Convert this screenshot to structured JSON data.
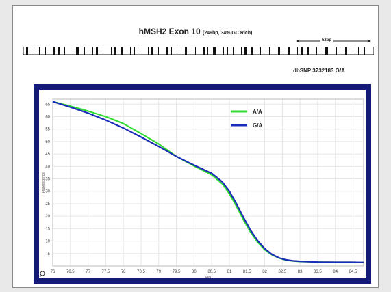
{
  "title": {
    "main": "hMSH2 Exon 10",
    "detail": "(249bp, 34% GC Rich)"
  },
  "annotation": {
    "span_label": "52bp",
    "snp_label": "dbSNP 3732183 G/A"
  },
  "colors": {
    "frame": "#141a78",
    "aa_series": "#33dd33",
    "ga_series": "#1a2cb8",
    "grid": "#e6e6e6"
  },
  "chart_data": {
    "type": "line",
    "xlabel": "deg",
    "ylabel": "Fluorescence",
    "xlim": [
      76,
      84.8
    ],
    "ylim": [
      0,
      67
    ],
    "xticks": [
      76,
      76.5,
      77,
      77.5,
      78,
      78.5,
      79,
      79.5,
      80,
      80.5,
      81,
      81.5,
      82,
      82.5,
      83,
      83.5,
      84,
      84.5
    ],
    "xtick_labels": [
      "76",
      "76.5",
      "77",
      "77.5",
      "78",
      "78.5",
      "79",
      "79.5",
      "80",
      "80.5",
      "81",
      "81.5",
      "82",
      "82.5",
      "83",
      "83.5",
      "84",
      "84.5"
    ],
    "yticks": [
      5,
      10,
      15,
      20,
      25,
      30,
      35,
      40,
      45,
      50,
      55,
      60,
      65
    ],
    "ytick_labels": [
      "5",
      "10",
      "15",
      "20",
      "25",
      "30",
      "35",
      "40",
      "45",
      "50",
      "55",
      "60",
      "65"
    ],
    "grid": true,
    "legend": "top-center",
    "series": [
      {
        "name": "A/A",
        "color": "#33dd33",
        "x": [
          76,
          76.5,
          77,
          77.5,
          78,
          78.5,
          79,
          79.5,
          80,
          80.5,
          80.8,
          81,
          81.2,
          81.4,
          81.6,
          81.8,
          82,
          82.2,
          82.4,
          82.6,
          82.8,
          83,
          83.5,
          84,
          84.5,
          84.8
        ],
        "y": [
          66,
          64.2,
          62.2,
          60,
          57.2,
          53.2,
          49,
          44,
          40.2,
          36.6,
          33,
          29,
          24,
          18.5,
          13.6,
          9.6,
          6.6,
          4.5,
          3.2,
          2.4,
          2.0,
          1.8,
          1.6,
          1.5,
          1.5,
          1.4
        ]
      },
      {
        "name": "G/A",
        "color": "#1a2cb8",
        "x": [
          76,
          76.5,
          77,
          77.5,
          78,
          78.5,
          79,
          79.5,
          80,
          80.5,
          80.8,
          81,
          81.2,
          81.4,
          81.6,
          81.8,
          82,
          82.2,
          82.4,
          82.6,
          82.8,
          83,
          83.5,
          84,
          84.5,
          84.8
        ],
        "y": [
          66,
          63.8,
          61.4,
          58.6,
          55.4,
          51.8,
          48,
          44,
          40.5,
          37.2,
          33.8,
          30,
          25,
          19.5,
          14.4,
          10.2,
          7.0,
          4.7,
          3.3,
          2.5,
          2.1,
          1.9,
          1.6,
          1.5,
          1.5,
          1.4
        ]
      }
    ]
  }
}
